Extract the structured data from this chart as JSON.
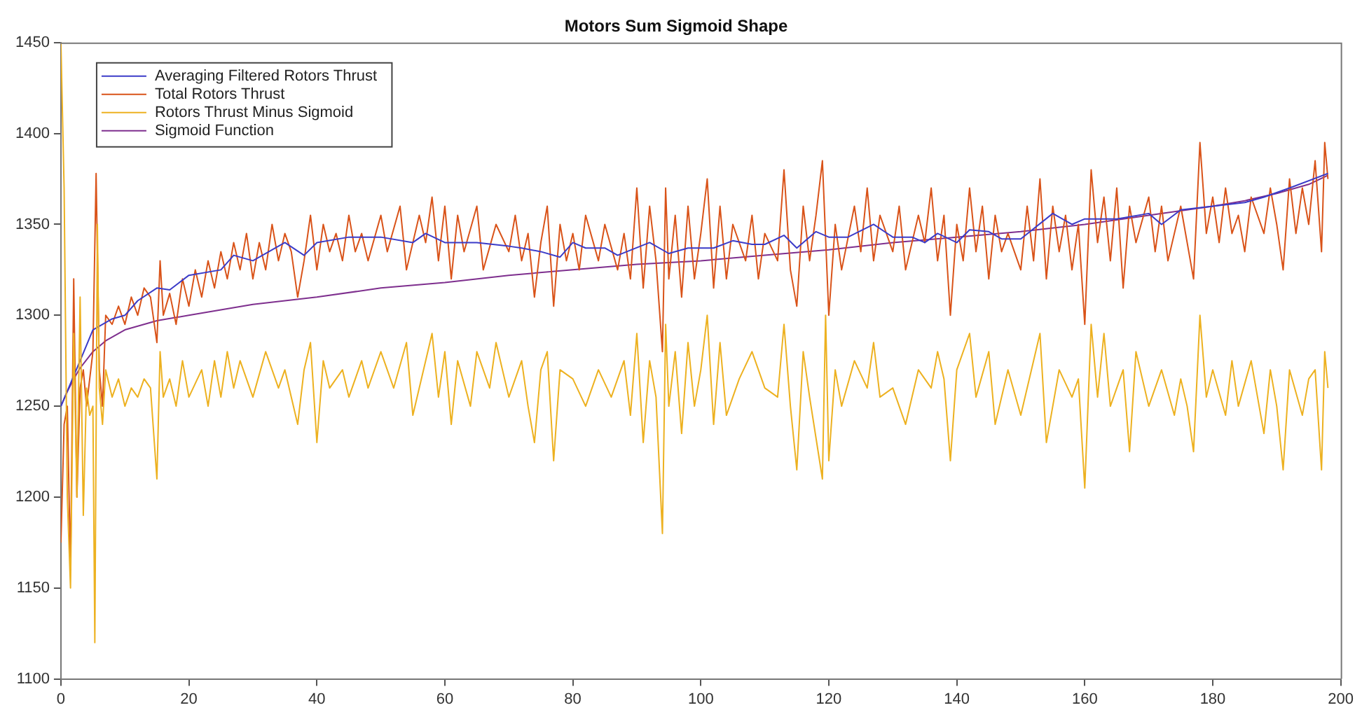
{
  "chart_data": {
    "type": "line",
    "title": "Motors Sum Sigmoid Shape",
    "xlim": [
      0,
      200
    ],
    "xticks": [
      0,
      20,
      40,
      60,
      80,
      100,
      120,
      140,
      160,
      180,
      200
    ],
    "ylim": [
      1100,
      1450
    ],
    "yticks": [
      1100,
      1150,
      1200,
      1250,
      1300,
      1350,
      1400,
      1450
    ],
    "grid": false,
    "legend": "top left",
    "marker": "none",
    "line_style": "solid",
    "series": [
      {
        "name": "Averaging Filtered Rotors Thrust",
        "color": "#3b3bc8",
        "x": [
          0,
          3,
          5,
          8,
          10,
          12,
          15,
          17,
          20,
          25,
          27,
          30,
          35,
          38,
          40,
          45,
          50,
          55,
          57,
          60,
          65,
          70,
          72,
          75,
          78,
          80,
          82,
          85,
          87,
          92,
          95,
          98,
          102,
          105,
          108,
          110,
          113,
          115,
          118,
          120,
          123,
          127,
          130,
          133,
          135,
          137,
          140,
          142,
          145,
          147,
          150,
          155,
          158,
          160,
          165,
          170,
          172,
          175,
          180,
          185,
          188,
          192,
          198
        ],
        "values": [
          1250,
          1275,
          1292,
          1298,
          1300,
          1308,
          1315,
          1314,
          1322,
          1325,
          1333,
          1330,
          1340,
          1333,
          1340,
          1343,
          1343,
          1340,
          1345,
          1340,
          1340,
          1338,
          1337,
          1335,
          1332,
          1340,
          1337,
          1337,
          1333,
          1340,
          1334,
          1337,
          1337,
          1341,
          1339,
          1339,
          1344,
          1337,
          1346,
          1343,
          1343,
          1350,
          1343,
          1343,
          1340,
          1345,
          1340,
          1347,
          1346,
          1342,
          1342,
          1356,
          1350,
          1353,
          1353,
          1356,
          1350,
          1358,
          1360,
          1362,
          1365,
          1370,
          1378
        ]
      },
      {
        "name": "Total Rotors Thrust",
        "color": "#d95319",
        "x": [
          0,
          0.5,
          1,
          1.5,
          2,
          2.5,
          3,
          3.5,
          4,
          5,
          5.5,
          6,
          6.5,
          7,
          8,
          9,
          10,
          11,
          12,
          13,
          14,
          15,
          15.5,
          16,
          17,
          18,
          19,
          20,
          21,
          22,
          23,
          24,
          25,
          26,
          27,
          28,
          29,
          30,
          31,
          32,
          33,
          34,
          35,
          36,
          37,
          38,
          39,
          40,
          41,
          42,
          43,
          44,
          45,
          46,
          47,
          48,
          50,
          51,
          53,
          54,
          56,
          57,
          58,
          59,
          60,
          61,
          62,
          63,
          65,
          66,
          68,
          70,
          71,
          72,
          73,
          74,
          75,
          76,
          77,
          78,
          79,
          80,
          81,
          82,
          84,
          85,
          87,
          88,
          89,
          90,
          91,
          92,
          93,
          94,
          94.5,
          95,
          96,
          97,
          98,
          99,
          100,
          101,
          102,
          103,
          104,
          105,
          107,
          108,
          109,
          110,
          112,
          113,
          114,
          115,
          116,
          117,
          118,
          119,
          120,
          121,
          122,
          124,
          125,
          126,
          127,
          128,
          130,
          131,
          132,
          134,
          135,
          136,
          137,
          138,
          139,
          140,
          141,
          142,
          143,
          144,
          145,
          146,
          147,
          148,
          150,
          151,
          152,
          153,
          154,
          155,
          156,
          157,
          158,
          159,
          160,
          161,
          162,
          163,
          164,
          165,
          166,
          167,
          168,
          170,
          171,
          172,
          173,
          175,
          176,
          177,
          178,
          179,
          180,
          181,
          182,
          183,
          184,
          185,
          186,
          188,
          189,
          190,
          191,
          192,
          193,
          194,
          195,
          196,
          197,
          197.5,
          198
        ],
        "values": [
          1175,
          1240,
          1250,
          1160,
          1320,
          1200,
          1260,
          1270,
          1250,
          1280,
          1378,
          1270,
          1250,
          1300,
          1295,
          1305,
          1295,
          1310,
          1300,
          1315,
          1310,
          1285,
          1330,
          1300,
          1312,
          1295,
          1320,
          1305,
          1325,
          1310,
          1330,
          1315,
          1335,
          1320,
          1340,
          1325,
          1345,
          1320,
          1340,
          1325,
          1350,
          1330,
          1345,
          1335,
          1310,
          1330,
          1355,
          1325,
          1350,
          1335,
          1345,
          1330,
          1355,
          1335,
          1345,
          1330,
          1355,
          1335,
          1360,
          1325,
          1355,
          1340,
          1365,
          1330,
          1360,
          1320,
          1355,
          1335,
          1360,
          1325,
          1350,
          1335,
          1355,
          1330,
          1345,
          1310,
          1340,
          1360,
          1305,
          1350,
          1330,
          1345,
          1325,
          1355,
          1330,
          1350,
          1325,
          1345,
          1320,
          1370,
          1315,
          1360,
          1330,
          1280,
          1370,
          1320,
          1355,
          1310,
          1360,
          1320,
          1345,
          1375,
          1315,
          1360,
          1320,
          1350,
          1330,
          1355,
          1320,
          1345,
          1330,
          1380,
          1325,
          1305,
          1360,
          1330,
          1355,
          1385,
          1300,
          1350,
          1325,
          1360,
          1335,
          1370,
          1330,
          1355,
          1335,
          1360,
          1325,
          1355,
          1340,
          1370,
          1330,
          1355,
          1300,
          1350,
          1330,
          1370,
          1335,
          1360,
          1320,
          1355,
          1335,
          1345,
          1325,
          1360,
          1330,
          1375,
          1320,
          1360,
          1335,
          1355,
          1325,
          1350,
          1295,
          1380,
          1340,
          1365,
          1330,
          1370,
          1315,
          1360,
          1340,
          1365,
          1335,
          1360,
          1330,
          1360,
          1340,
          1320,
          1395,
          1345,
          1365,
          1340,
          1370,
          1345,
          1355,
          1335,
          1365,
          1345,
          1370,
          1350,
          1325,
          1375,
          1345,
          1370,
          1350,
          1385,
          1335,
          1395,
          1375
        ]
      },
      {
        "name": "Rotors Thrust Minus Sigmoid",
        "color": "#edb120",
        "x": [
          0,
          0.5,
          1,
          1.5,
          2,
          2.5,
          3,
          3.5,
          4,
          4.5,
          5,
          5.3,
          5.7,
          6,
          6.5,
          7,
          8,
          9,
          10,
          11,
          12,
          13,
          14,
          15,
          15.5,
          16,
          17,
          18,
          19,
          20,
          22,
          23,
          24,
          25,
          26,
          27,
          28,
          30,
          32,
          34,
          35,
          37,
          38,
          39,
          40,
          41,
          42,
          44,
          45,
          47,
          48,
          50,
          52,
          54,
          55,
          57,
          58,
          59,
          60,
          61,
          62,
          64,
          65,
          67,
          68,
          70,
          72,
          73,
          74,
          75,
          76,
          77,
          78,
          80,
          82,
          84,
          86,
          88,
          89,
          90,
          91,
          92,
          93,
          94,
          94.5,
          95,
          96,
          97,
          98,
          99,
          100,
          101,
          102,
          103,
          104,
          106,
          108,
          110,
          112,
          113,
          114,
          115,
          116,
          117,
          119,
          119.5,
          120,
          121,
          122,
          124,
          126,
          127,
          128,
          130,
          132,
          134,
          136,
          137,
          138,
          139,
          140,
          142,
          143,
          145,
          146,
          148,
          150,
          152,
          153,
          154,
          156,
          158,
          159,
          160,
          161,
          162,
          163,
          164,
          166,
          167,
          168,
          170,
          172,
          174,
          175,
          176,
          177,
          178,
          179,
          180,
          182,
          183,
          184,
          186,
          188,
          189,
          190,
          191,
          192,
          194,
          195,
          196,
          197,
          197.5,
          198
        ],
        "values": [
          1450,
          1370,
          1200,
          1150,
          1290,
          1200,
          1310,
          1190,
          1260,
          1245,
          1250,
          1120,
          1350,
          1260,
          1240,
          1270,
          1255,
          1265,
          1250,
          1260,
          1255,
          1265,
          1260,
          1210,
          1280,
          1255,
          1265,
          1250,
          1275,
          1255,
          1270,
          1250,
          1275,
          1255,
          1280,
          1260,
          1275,
          1255,
          1280,
          1260,
          1270,
          1240,
          1270,
          1285,
          1230,
          1275,
          1260,
          1270,
          1255,
          1275,
          1260,
          1280,
          1260,
          1285,
          1245,
          1275,
          1290,
          1255,
          1280,
          1240,
          1275,
          1250,
          1280,
          1260,
          1285,
          1255,
          1275,
          1250,
          1230,
          1270,
          1280,
          1220,
          1270,
          1265,
          1250,
          1270,
          1255,
          1275,
          1245,
          1290,
          1230,
          1275,
          1255,
          1180,
          1295,
          1250,
          1280,
          1235,
          1285,
          1250,
          1270,
          1300,
          1240,
          1285,
          1245,
          1265,
          1280,
          1260,
          1255,
          1295,
          1250,
          1215,
          1280,
          1255,
          1210,
          1300,
          1220,
          1270,
          1250,
          1275,
          1260,
          1285,
          1255,
          1260,
          1240,
          1270,
          1260,
          1280,
          1265,
          1220,
          1270,
          1290,
          1255,
          1280,
          1240,
          1270,
          1245,
          1275,
          1290,
          1230,
          1270,
          1255,
          1265,
          1205,
          1295,
          1255,
          1290,
          1250,
          1270,
          1225,
          1280,
          1250,
          1270,
          1245,
          1265,
          1250,
          1225,
          1300,
          1255,
          1270,
          1245,
          1275,
          1250,
          1275,
          1235,
          1270,
          1250,
          1215,
          1270,
          1245,
          1265,
          1270,
          1215,
          1280,
          1260
        ]
      },
      {
        "name": "Sigmoid Function",
        "color": "#7e2f8e",
        "x": [
          0,
          1,
          2,
          3,
          5,
          7,
          10,
          15,
          20,
          30,
          40,
          50,
          60,
          70,
          80,
          90,
          100,
          110,
          120,
          130,
          140,
          150,
          160,
          170,
          180,
          185,
          190,
          195,
          198
        ],
        "values": [
          1250,
          1258,
          1265,
          1271,
          1280,
          1286,
          1292,
          1297,
          1300,
          1306,
          1310,
          1315,
          1318,
          1322,
          1325,
          1328,
          1330,
          1333,
          1336,
          1340,
          1343,
          1346,
          1350,
          1355,
          1360,
          1363,
          1367,
          1372,
          1377
        ]
      }
    ]
  }
}
